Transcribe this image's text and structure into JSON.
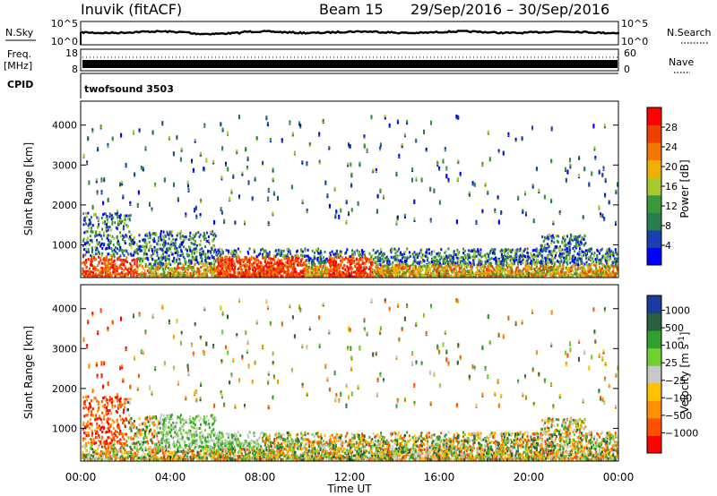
{
  "header": {
    "title": "Inuvik (fitACF)",
    "beam": "Beam 15",
    "dates": "29/Sep/2016 – 30/Sep/2016"
  },
  "top_panels": {
    "nsky_label": "N.Sky",
    "nsky_top_tick": "10^5",
    "nsky_bottom_tick": "10^0",
    "nsearch_label": "N.Search",
    "nsearch_right_top": "10^5",
    "nsearch_right_bottom": "10^0",
    "freq_label": "Freq.",
    "freq_unit": "[MHz]",
    "freq_top_tick": "18",
    "freq_bottom_tick": "8",
    "nave_label": "Nave",
    "nave_top_tick": "60",
    "nave_bottom_tick": "0",
    "cpid_label": "CPID",
    "cpid_value": "twofsound 3503"
  },
  "colors": {
    "power": [
      "#0000ff",
      "#1a3fb0",
      "#2a7d4f",
      "#3a9a3a",
      "#a8c830",
      "#f0b000",
      "#f07800",
      "#f04000",
      "#ff0000"
    ],
    "velocity": [
      "#ff0000",
      "#ff5000",
      "#ff9000",
      "#ffc000",
      "#c8c8c8",
      "#70d030",
      "#30a030",
      "#2a6040",
      "#1a3aa0"
    ]
  },
  "chart_data": [
    {
      "type": "heatmap",
      "name": "power",
      "ylabel": "Slant Range [km]",
      "yticks": [
        1000,
        2000,
        3000,
        4000
      ],
      "ylim": [
        180,
        4600
      ],
      "xlim_hours": [
        0,
        24
      ],
      "colorbar_label": "Power [dB]",
      "colorbar_ticks": [
        "4",
        "8",
        "12",
        "16",
        "20",
        "24",
        "28"
      ],
      "colorbar_range": [
        0,
        32
      ]
    },
    {
      "type": "heatmap",
      "name": "velocity",
      "ylabel": "Slant Range [km]",
      "yticks": [
        1000,
        2000,
        3000,
        4000
      ],
      "ylim": [
        180,
        4600
      ],
      "xlabel": "Time UT",
      "xticks": [
        "00:00",
        "04:00",
        "08:00",
        "12:00",
        "16:00",
        "20:00",
        "00:00"
      ],
      "colorbar_label": "Velocity [m s^-1]",
      "colorbar_ticks": [
        "1000",
        "500",
        "100",
        "25",
        "−25",
        "−100",
        "−500",
        "−1000"
      ]
    }
  ]
}
